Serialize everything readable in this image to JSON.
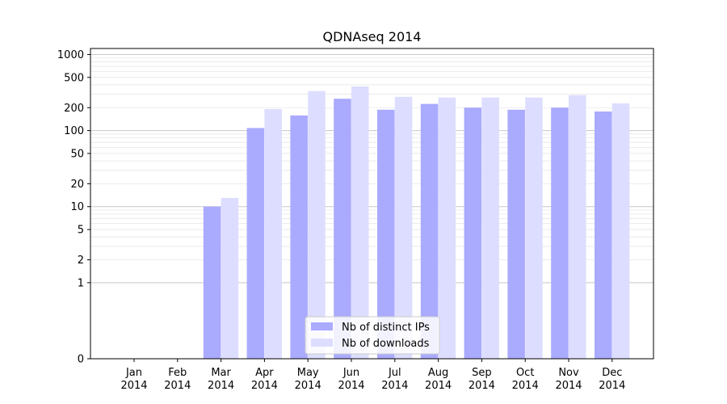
{
  "chart_data": {
    "type": "bar",
    "title": "QDNAseq 2014",
    "xlabel": "",
    "ylabel": "",
    "yscale": "symlog",
    "ylim": [
      0,
      1200
    ],
    "categories": [
      "Jan\n2014",
      "Feb\n2014",
      "Mar\n2014",
      "Apr\n2014",
      "May\n2014",
      "Jun\n2014",
      "Jul\n2014",
      "Aug\n2014",
      "Sep\n2014",
      "Oct\n2014",
      "Nov\n2014",
      "Dec\n2014"
    ],
    "category_lines": [
      [
        "Jan",
        "2014"
      ],
      [
        "Feb",
        "2014"
      ],
      [
        "Mar",
        "2014"
      ],
      [
        "Apr",
        "2014"
      ],
      [
        "May",
        "2014"
      ],
      [
        "Jun",
        "2014"
      ],
      [
        "Jul",
        "2014"
      ],
      [
        "Aug",
        "2014"
      ],
      [
        "Sep",
        "2014"
      ],
      [
        "Oct",
        "2014"
      ],
      [
        "Nov",
        "2014"
      ],
      [
        "Dec",
        "2014"
      ]
    ],
    "yticks": [
      "0",
      "1",
      "2",
      "5",
      "10",
      "20",
      "50",
      "100",
      "200",
      "500",
      "1000"
    ],
    "ytick_values": [
      0,
      1,
      2,
      5,
      10,
      20,
      50,
      100,
      200,
      500,
      1000
    ],
    "series": [
      {
        "name": "Nb of distinct IPs",
        "color": "#aaaaff",
        "values": [
          0,
          0,
          10,
          108,
          158,
          262,
          188,
          224,
          200,
          188,
          200,
          178
        ]
      },
      {
        "name": "Nb of downloads",
        "color": "#ddddff",
        "values": [
          0,
          0,
          13,
          192,
          330,
          380,
          278,
          272,
          272,
          272,
          292,
          228
        ]
      }
    ],
    "legend": {
      "position": "bottom-center"
    },
    "grid": true
  }
}
